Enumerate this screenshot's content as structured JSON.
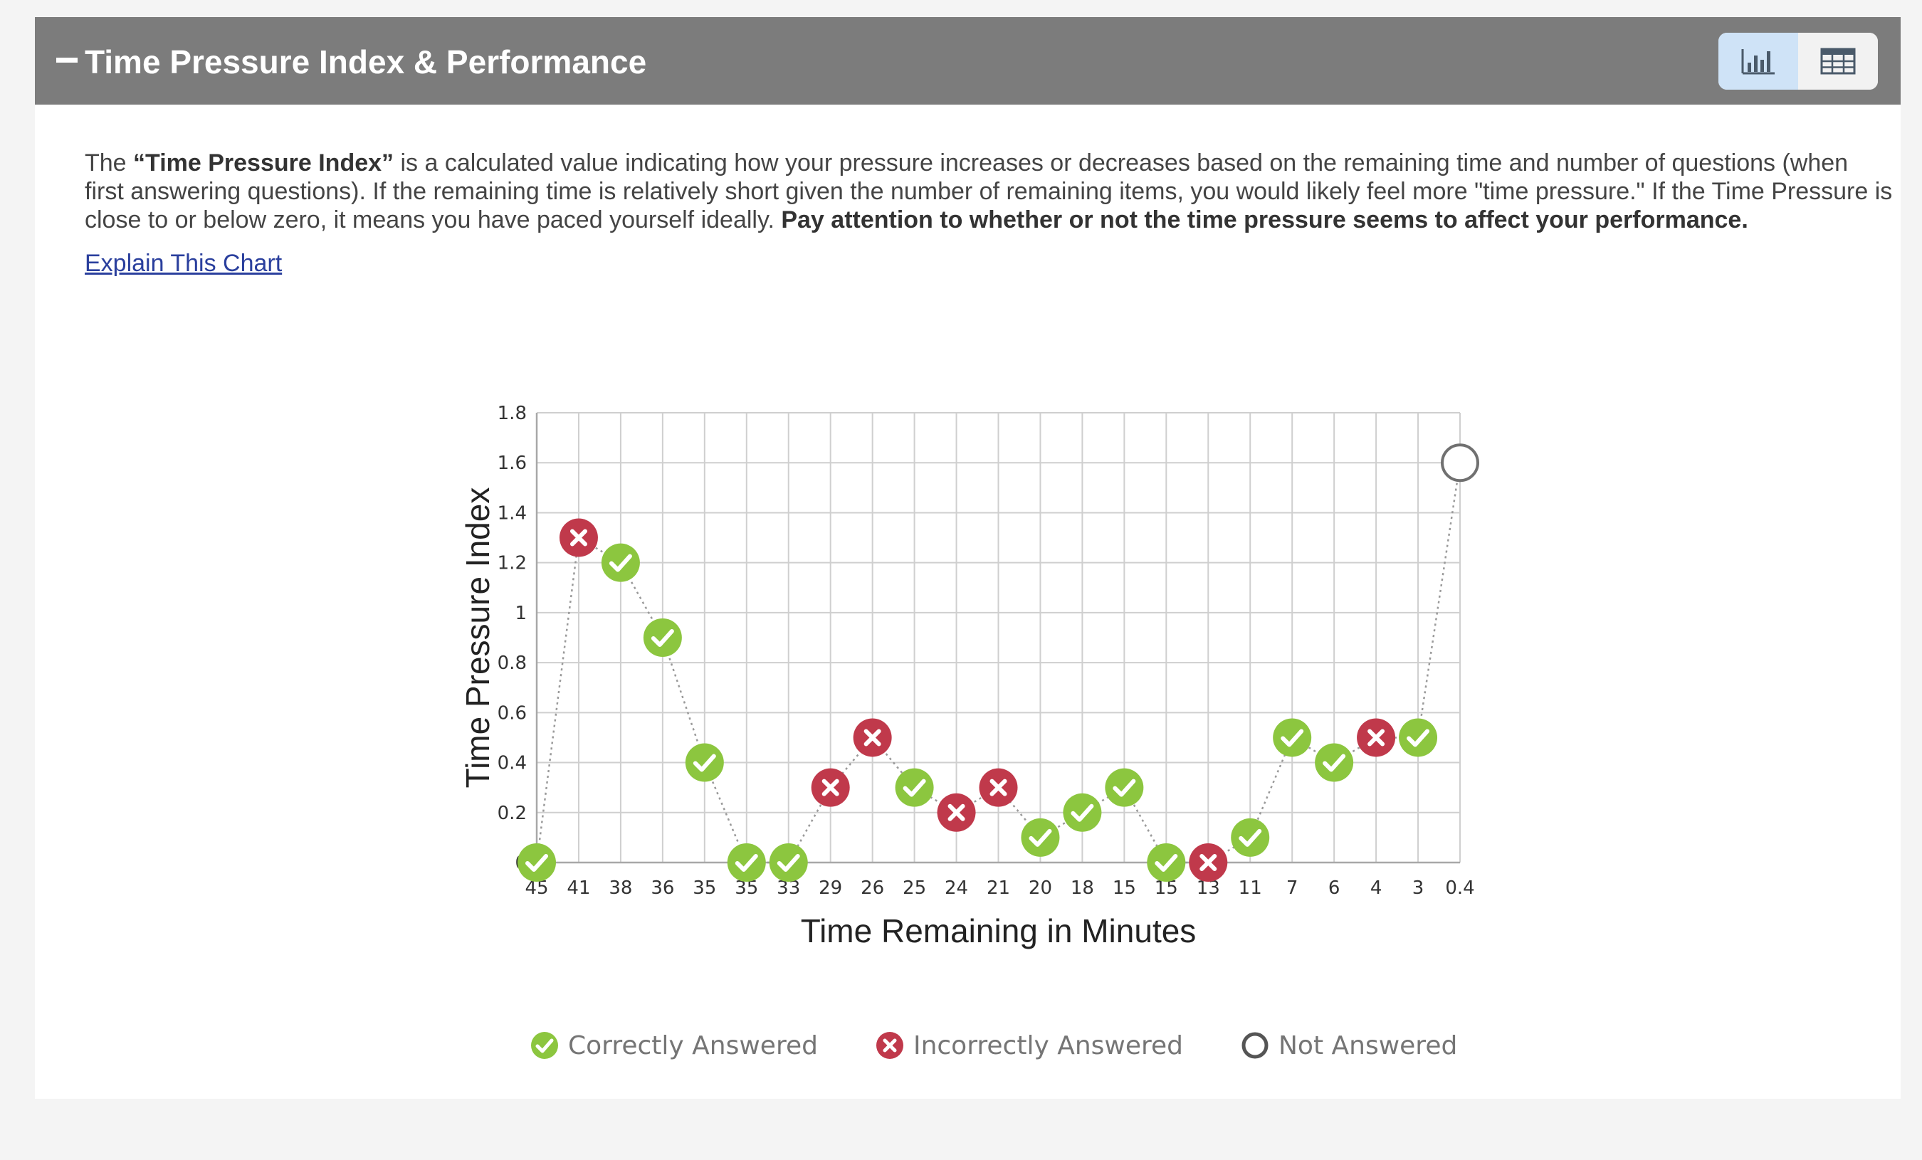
{
  "header": {
    "title": "Time Pressure Index & Performance",
    "collapse_icon": "minus-icon",
    "view_toggle": {
      "chart_icon": "bar-chart-icon",
      "table_icon": "table-grid-icon",
      "active": "chart"
    }
  },
  "description": {
    "intro": "The ",
    "term": "“Time Pressure Index”",
    "body": " is a calculated value indicating how your pressure increases or decreases based on the remaining time and number of questions (when first answering questions). If the remaining time is relatively short given the number of remaining items, you would likely feel more \"time pressure.\" If the Time Pressure is close to or below zero, it means you have paced yourself ideally. ",
    "emphasis": "Pay attention to whether or not the time pressure seems to affect your performance."
  },
  "explain_link": "Explain This Chart",
  "colors": {
    "header_bg": "#7c7c7c",
    "correct": "#8cc63f",
    "incorrect": "#c0394b",
    "not_answered_stroke": "#707070",
    "link": "#2a3f9d",
    "toggle_active": "#cfe3f7"
  },
  "chart_data": {
    "type": "scatter",
    "xlabel": "Time Remaining in Minutes",
    "ylabel": "Time Pressure Index",
    "ylim": [
      0,
      1.8
    ],
    "y_ticks": [
      "0",
      "0.2",
      "0.4",
      "0.6",
      "0.8",
      "1",
      "1.2",
      "1.4",
      "1.6",
      "1.8"
    ],
    "categories": [
      "45",
      "41",
      "38",
      "36",
      "35",
      "35",
      "33",
      "29",
      "26",
      "25",
      "24",
      "21",
      "20",
      "18",
      "15",
      "15",
      "13",
      "11",
      "7",
      "6",
      "4",
      "3",
      "0.4"
    ],
    "values": [
      0,
      1.3,
      1.2,
      0.9,
      0.4,
      0,
      0,
      0.3,
      0.5,
      0.3,
      0.2,
      0.3,
      0.1,
      0.2,
      0.3,
      0,
      0,
      0.1,
      0.5,
      0.4,
      0.5,
      0.5,
      1.6
    ],
    "status": [
      "correct",
      "incorrect",
      "correct",
      "correct",
      "correct",
      "correct",
      "correct",
      "incorrect",
      "incorrect",
      "correct",
      "incorrect",
      "incorrect",
      "correct",
      "correct",
      "correct",
      "correct",
      "incorrect",
      "correct",
      "correct",
      "correct",
      "incorrect",
      "correct",
      "unanswered"
    ],
    "connector": "dotted",
    "grid": true,
    "legend": [
      {
        "key": "correct",
        "label": "Correctly Answered"
      },
      {
        "key": "incorrect",
        "label": "Incorrectly Answered"
      },
      {
        "key": "unanswered",
        "label": "Not Answered"
      }
    ],
    "legend_position": "bottom-center"
  }
}
